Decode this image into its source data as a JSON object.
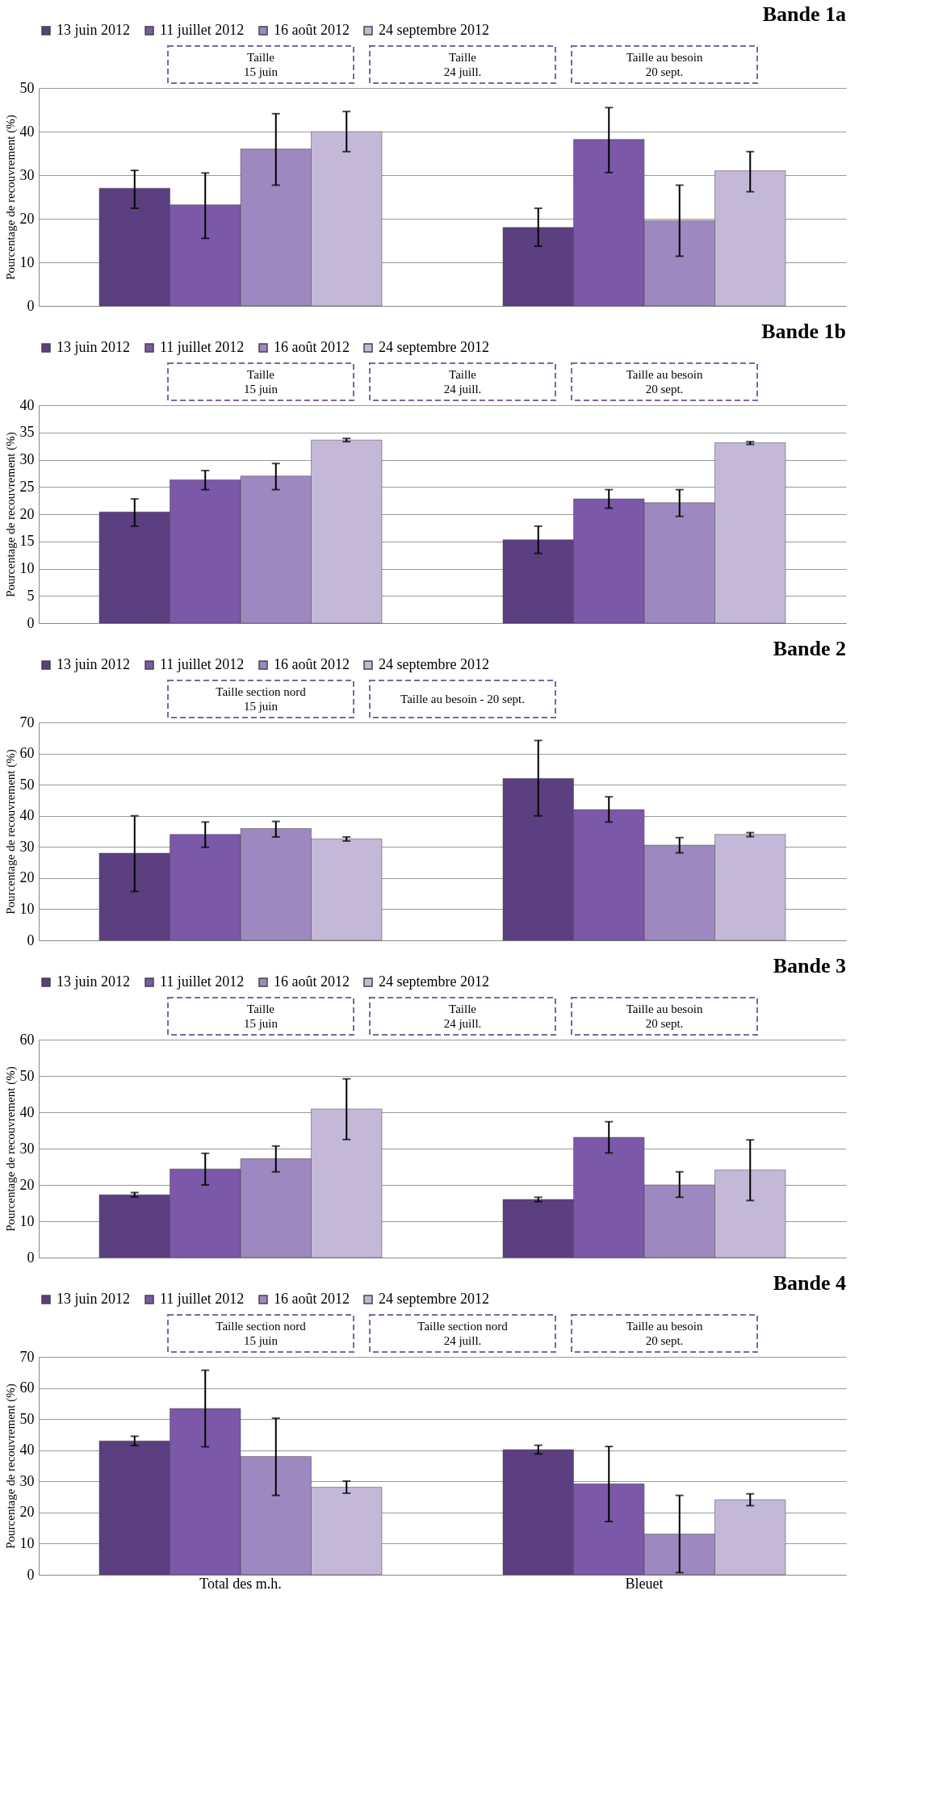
{
  "chart_data": [
    {
      "type": "bar",
      "title": "Bande 1a",
      "ylabel": "Pourcentage de recouvrement (%)",
      "categories": [
        null,
        null
      ],
      "tick_labels": "y",
      "legend": "top",
      "grid": "y",
      "ylim": [
        0,
        50
      ],
      "yticks": [
        0,
        10,
        20,
        30,
        40,
        50
      ],
      "annotations": [
        "Taille\n15 juin",
        "Taille\n24 juill.",
        "Taille au besoin\n20 sept."
      ],
      "series": [
        {
          "name": "13 juin 2012",
          "color": "#5b3f80",
          "values": [
            27,
            18
          ],
          "errors": [
            [
              22.4,
              31.1
            ],
            [
              13.7,
              22.4
            ]
          ]
        },
        {
          "name": "11 juillet 2012",
          "color": "#7b58a8",
          "values": [
            23.2,
            38.2
          ],
          "errors": [
            [
              15.5,
              30.5
            ],
            [
              30.6,
              45.5
            ]
          ]
        },
        {
          "name": "16 août 2012",
          "color": "#9d88bf",
          "values": [
            36,
            19.6
          ],
          "errors": [
            [
              27.7,
              44.1
            ],
            [
              11.4,
              27.7
            ]
          ]
        },
        {
          "name": "24 septembre 2012",
          "color": "#c4b8d8",
          "values": [
            40,
            31
          ],
          "errors": [
            [
              35.4,
              44.6
            ],
            [
              26.2,
              35.4
            ]
          ]
        }
      ]
    },
    {
      "type": "bar",
      "title": "Bande 1b",
      "ylabel": "Pourcentage de recouvrement (%)",
      "categories": [
        null,
        null
      ],
      "tick_labels": "y",
      "legend": "top",
      "grid": "y",
      "ylim": [
        0,
        40
      ],
      "yticks": [
        0,
        5,
        10,
        15,
        20,
        25,
        30,
        35,
        40
      ],
      "annotations": [
        "Taille\n15 juin",
        "Taille\n24 juill.",
        "Taille au besoin\n20 sept."
      ],
      "series": [
        {
          "name": "13 juin 2012",
          "color": "#5b3f80",
          "values": [
            20.4,
            15.3
          ],
          "errors": [
            [
              17.8,
              22.8
            ],
            [
              12.8,
              17.8
            ]
          ]
        },
        {
          "name": "11 juillet 2012",
          "color": "#7b58a8",
          "values": [
            26.3,
            22.8
          ],
          "errors": [
            [
              24.5,
              28
            ],
            [
              21.1,
              24.5
            ]
          ]
        },
        {
          "name": "16 août 2012",
          "color": "#9d88bf",
          "values": [
            27,
            22.1
          ],
          "errors": [
            [
              24.5,
              29.3
            ],
            [
              19.6,
              24.5
            ]
          ]
        },
        {
          "name": "24 septembre 2012",
          "color": "#c4b8d8",
          "values": [
            33.6,
            33.1
          ],
          "errors": [
            [
              33.3,
              33.9
            ],
            [
              32.8,
              33.3
            ]
          ]
        }
      ]
    },
    {
      "type": "bar",
      "title": "Bande 2",
      "ylabel": "Pourcentage de recouvrement (%)",
      "categories": [
        null,
        null
      ],
      "tick_labels": "y",
      "legend": "top",
      "grid": "y",
      "ylim": [
        0,
        70
      ],
      "yticks": [
        0,
        10,
        20,
        30,
        40,
        50,
        60,
        70
      ],
      "annotations": [
        "Taille section nord\n15 juin",
        "Taille au besoin - 20 sept."
      ],
      "series": [
        {
          "name": "13 juin 2012",
          "color": "#5b3f80",
          "values": [
            28,
            52
          ],
          "errors": [
            [
              15.7,
              40
            ],
            [
              40,
              64.2
            ]
          ]
        },
        {
          "name": "11 juillet 2012",
          "color": "#7b58a8",
          "values": [
            34,
            42
          ],
          "errors": [
            [
              29.9,
              38
            ],
            [
              38,
              46.1
            ]
          ]
        },
        {
          "name": "16 août 2012",
          "color": "#9d88bf",
          "values": [
            35.9,
            30.6
          ],
          "errors": [
            [
              33.2,
              38.2
            ],
            [
              28.1,
              33
            ]
          ]
        },
        {
          "name": "24 septembre 2012",
          "color": "#c4b8d8",
          "values": [
            32.6,
            34
          ],
          "errors": [
            [
              31.9,
              33.2
            ],
            [
              33.3,
              34.6
            ]
          ]
        }
      ]
    },
    {
      "type": "bar",
      "title": "Bande 3",
      "ylabel": "Pourcentage de recouvrement (%)",
      "categories": [
        null,
        null
      ],
      "tick_labels": "y",
      "legend": "top",
      "grid": "y",
      "ylim": [
        0,
        60
      ],
      "yticks": [
        0,
        10,
        20,
        30,
        40,
        50,
        60
      ],
      "annotations": [
        "Taille\n15 juin",
        "Taille\n24 juill.",
        "Taille au besoin\n20 sept."
      ],
      "series": [
        {
          "name": "13 juin 2012",
          "color": "#5b3f80",
          "values": [
            17.3,
            16
          ],
          "errors": [
            [
              16.7,
              17.9
            ],
            [
              15.4,
              16.6
            ]
          ]
        },
        {
          "name": "11 juillet 2012",
          "color": "#7b58a8",
          "values": [
            24.4,
            33.1
          ],
          "errors": [
            [
              20,
              28.7
            ],
            [
              28.8,
              37.4
            ]
          ]
        },
        {
          "name": "16 août 2012",
          "color": "#9d88bf",
          "values": [
            27.2,
            20
          ],
          "errors": [
            [
              23.6,
              30.7
            ],
            [
              16.6,
              23.6
            ]
          ]
        },
        {
          "name": "24 septembre 2012",
          "color": "#c4b8d8",
          "values": [
            40.9,
            24.1
          ],
          "errors": [
            [
              32.5,
              49.2
            ],
            [
              15.7,
              32.4
            ]
          ]
        }
      ]
    },
    {
      "type": "bar",
      "title": "Bande 4",
      "ylabel": "Pourcentage de recouvrement (%)",
      "categories": [
        "Total des m.h.",
        "Bleuet"
      ],
      "legend": "top",
      "grid": "y",
      "ylim": [
        0,
        70
      ],
      "yticks": [
        0,
        10,
        20,
        30,
        40,
        50,
        60,
        70
      ],
      "annotations": [
        "Taille section nord\n15 juin",
        "Taille section nord\n24 juill.",
        "Taille au besoin\n20 sept."
      ],
      "series": [
        {
          "name": "13 juin 2012",
          "color": "#5b3f80",
          "values": [
            43,
            40.2
          ],
          "errors": [
            [
              41.5,
              44.5
            ],
            [
              38.8,
              41.6
            ]
          ]
        },
        {
          "name": "11 juillet 2012",
          "color": "#7b58a8",
          "values": [
            53.4,
            29.2
          ],
          "errors": [
            [
              41.1,
              65.7
            ],
            [
              17.1,
              41.2
            ]
          ]
        },
        {
          "name": "16 août 2012",
          "color": "#9d88bf",
          "values": [
            38,
            13.1
          ],
          "errors": [
            [
              25.5,
              50.3
            ],
            [
              0.7,
              25.5
            ]
          ]
        },
        {
          "name": "24 septembre 2012",
          "color": "#c4b8d8",
          "values": [
            28.1,
            24.1
          ],
          "errors": [
            [
              26.2,
              30.1
            ],
            [
              22.2,
              26
            ]
          ]
        }
      ]
    }
  ]
}
